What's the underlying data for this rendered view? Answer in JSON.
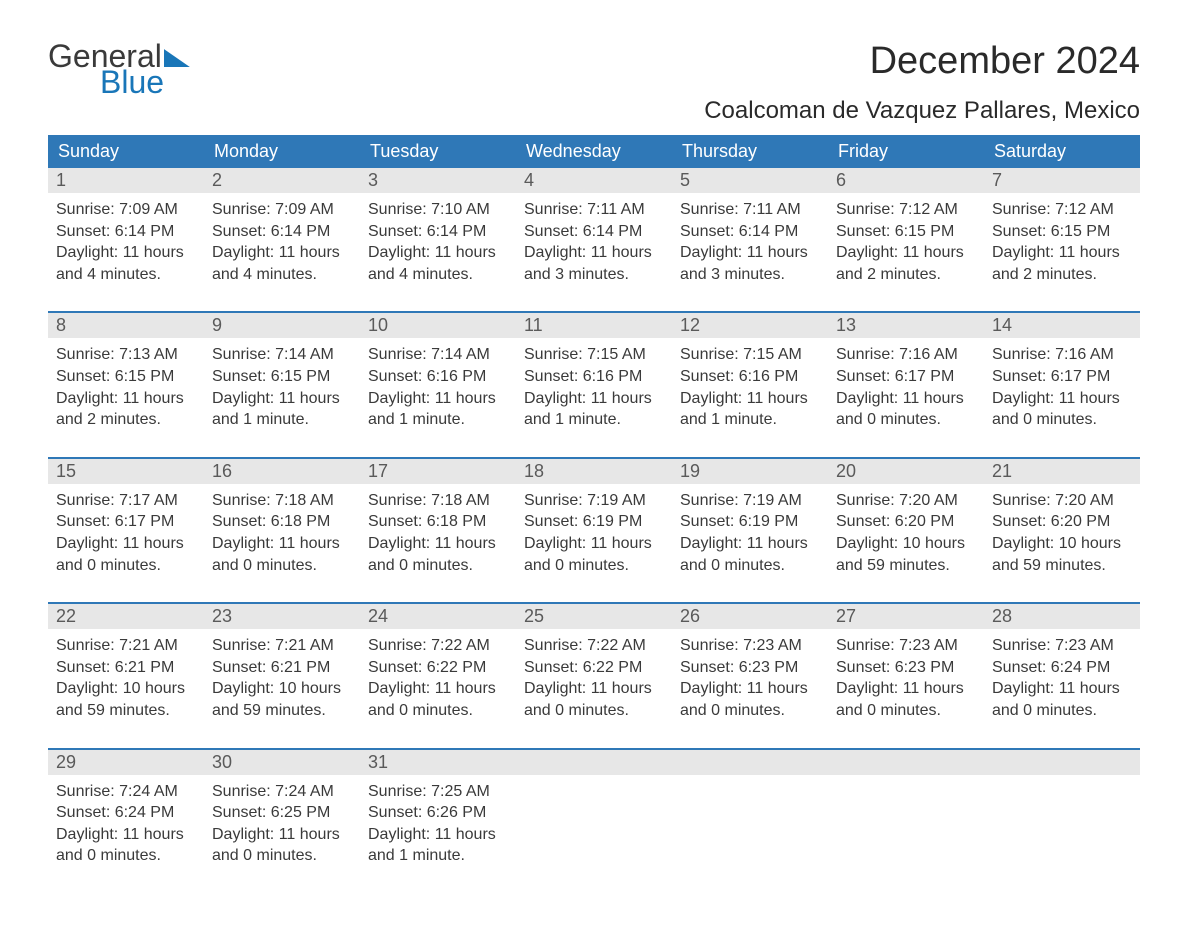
{
  "logo": {
    "general": "General",
    "blue": "Blue"
  },
  "title": "December 2024",
  "location": "Coalcoman de Vazquez Pallares, Mexico",
  "daynames": [
    "Sunday",
    "Monday",
    "Tuesday",
    "Wednesday",
    "Thursday",
    "Friday",
    "Saturday"
  ],
  "colors": {
    "header_bg": "#2f78b7",
    "header_text": "#ffffff",
    "daynum_bg": "#e7e7e7",
    "daynum_text": "#5a5a5a",
    "body_text": "#3a3a3a",
    "week_border": "#2f78b7",
    "logo_blue": "#1976b8",
    "logo_gray": "#3a3a3a"
  },
  "weeks": [
    [
      {
        "n": "1",
        "sunrise": "Sunrise: 7:09 AM",
        "sunset": "Sunset: 6:14 PM",
        "day1": "Daylight: 11 hours",
        "day2": "and 4 minutes."
      },
      {
        "n": "2",
        "sunrise": "Sunrise: 7:09 AM",
        "sunset": "Sunset: 6:14 PM",
        "day1": "Daylight: 11 hours",
        "day2": "and 4 minutes."
      },
      {
        "n": "3",
        "sunrise": "Sunrise: 7:10 AM",
        "sunset": "Sunset: 6:14 PM",
        "day1": "Daylight: 11 hours",
        "day2": "and 4 minutes."
      },
      {
        "n": "4",
        "sunrise": "Sunrise: 7:11 AM",
        "sunset": "Sunset: 6:14 PM",
        "day1": "Daylight: 11 hours",
        "day2": "and 3 minutes."
      },
      {
        "n": "5",
        "sunrise": "Sunrise: 7:11 AM",
        "sunset": "Sunset: 6:14 PM",
        "day1": "Daylight: 11 hours",
        "day2": "and 3 minutes."
      },
      {
        "n": "6",
        "sunrise": "Sunrise: 7:12 AM",
        "sunset": "Sunset: 6:15 PM",
        "day1": "Daylight: 11 hours",
        "day2": "and 2 minutes."
      },
      {
        "n": "7",
        "sunrise": "Sunrise: 7:12 AM",
        "sunset": "Sunset: 6:15 PM",
        "day1": "Daylight: 11 hours",
        "day2": "and 2 minutes."
      }
    ],
    [
      {
        "n": "8",
        "sunrise": "Sunrise: 7:13 AM",
        "sunset": "Sunset: 6:15 PM",
        "day1": "Daylight: 11 hours",
        "day2": "and 2 minutes."
      },
      {
        "n": "9",
        "sunrise": "Sunrise: 7:14 AM",
        "sunset": "Sunset: 6:15 PM",
        "day1": "Daylight: 11 hours",
        "day2": "and 1 minute."
      },
      {
        "n": "10",
        "sunrise": "Sunrise: 7:14 AM",
        "sunset": "Sunset: 6:16 PM",
        "day1": "Daylight: 11 hours",
        "day2": "and 1 minute."
      },
      {
        "n": "11",
        "sunrise": "Sunrise: 7:15 AM",
        "sunset": "Sunset: 6:16 PM",
        "day1": "Daylight: 11 hours",
        "day2": "and 1 minute."
      },
      {
        "n": "12",
        "sunrise": "Sunrise: 7:15 AM",
        "sunset": "Sunset: 6:16 PM",
        "day1": "Daylight: 11 hours",
        "day2": "and 1 minute."
      },
      {
        "n": "13",
        "sunrise": "Sunrise: 7:16 AM",
        "sunset": "Sunset: 6:17 PM",
        "day1": "Daylight: 11 hours",
        "day2": "and 0 minutes."
      },
      {
        "n": "14",
        "sunrise": "Sunrise: 7:16 AM",
        "sunset": "Sunset: 6:17 PM",
        "day1": "Daylight: 11 hours",
        "day2": "and 0 minutes."
      }
    ],
    [
      {
        "n": "15",
        "sunrise": "Sunrise: 7:17 AM",
        "sunset": "Sunset: 6:17 PM",
        "day1": "Daylight: 11 hours",
        "day2": "and 0 minutes."
      },
      {
        "n": "16",
        "sunrise": "Sunrise: 7:18 AM",
        "sunset": "Sunset: 6:18 PM",
        "day1": "Daylight: 11 hours",
        "day2": "and 0 minutes."
      },
      {
        "n": "17",
        "sunrise": "Sunrise: 7:18 AM",
        "sunset": "Sunset: 6:18 PM",
        "day1": "Daylight: 11 hours",
        "day2": "and 0 minutes."
      },
      {
        "n": "18",
        "sunrise": "Sunrise: 7:19 AM",
        "sunset": "Sunset: 6:19 PM",
        "day1": "Daylight: 11 hours",
        "day2": "and 0 minutes."
      },
      {
        "n": "19",
        "sunrise": "Sunrise: 7:19 AM",
        "sunset": "Sunset: 6:19 PM",
        "day1": "Daylight: 11 hours",
        "day2": "and 0 minutes."
      },
      {
        "n": "20",
        "sunrise": "Sunrise: 7:20 AM",
        "sunset": "Sunset: 6:20 PM",
        "day1": "Daylight: 10 hours",
        "day2": "and 59 minutes."
      },
      {
        "n": "21",
        "sunrise": "Sunrise: 7:20 AM",
        "sunset": "Sunset: 6:20 PM",
        "day1": "Daylight: 10 hours",
        "day2": "and 59 minutes."
      }
    ],
    [
      {
        "n": "22",
        "sunrise": "Sunrise: 7:21 AM",
        "sunset": "Sunset: 6:21 PM",
        "day1": "Daylight: 10 hours",
        "day2": "and 59 minutes."
      },
      {
        "n": "23",
        "sunrise": "Sunrise: 7:21 AM",
        "sunset": "Sunset: 6:21 PM",
        "day1": "Daylight: 10 hours",
        "day2": "and 59 minutes."
      },
      {
        "n": "24",
        "sunrise": "Sunrise: 7:22 AM",
        "sunset": "Sunset: 6:22 PM",
        "day1": "Daylight: 11 hours",
        "day2": "and 0 minutes."
      },
      {
        "n": "25",
        "sunrise": "Sunrise: 7:22 AM",
        "sunset": "Sunset: 6:22 PM",
        "day1": "Daylight: 11 hours",
        "day2": "and 0 minutes."
      },
      {
        "n": "26",
        "sunrise": "Sunrise: 7:23 AM",
        "sunset": "Sunset: 6:23 PM",
        "day1": "Daylight: 11 hours",
        "day2": "and 0 minutes."
      },
      {
        "n": "27",
        "sunrise": "Sunrise: 7:23 AM",
        "sunset": "Sunset: 6:23 PM",
        "day1": "Daylight: 11 hours",
        "day2": "and 0 minutes."
      },
      {
        "n": "28",
        "sunrise": "Sunrise: 7:23 AM",
        "sunset": "Sunset: 6:24 PM",
        "day1": "Daylight: 11 hours",
        "day2": "and 0 minutes."
      }
    ],
    [
      {
        "n": "29",
        "sunrise": "Sunrise: 7:24 AM",
        "sunset": "Sunset: 6:24 PM",
        "day1": "Daylight: 11 hours",
        "day2": "and 0 minutes."
      },
      {
        "n": "30",
        "sunrise": "Sunrise: 7:24 AM",
        "sunset": "Sunset: 6:25 PM",
        "day1": "Daylight: 11 hours",
        "day2": "and 0 minutes."
      },
      {
        "n": "31",
        "sunrise": "Sunrise: 7:25 AM",
        "sunset": "Sunset: 6:26 PM",
        "day1": "Daylight: 11 hours",
        "day2": "and 1 minute."
      },
      null,
      null,
      null,
      null
    ]
  ]
}
